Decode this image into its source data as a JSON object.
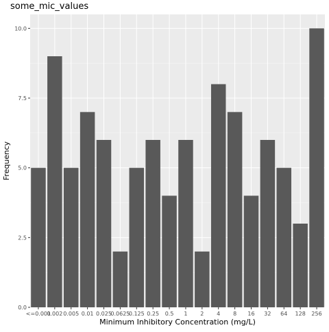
{
  "chart_data": {
    "type": "bar",
    "title": "some_mic_values",
    "xlabel": "Minimum Inhibitory Concentration (mg/L)",
    "ylabel": "Frequency",
    "categories": [
      "<=0.001",
      "0.002",
      "0.005",
      "0.01",
      "0.025",
      "0.0625",
      "0.125",
      "0.25",
      "0.5",
      "1",
      "2",
      "4",
      "8",
      "16",
      "32",
      "64",
      "128",
      "256"
    ],
    "values": [
      5,
      9,
      5,
      7,
      6,
      2,
      5,
      6,
      4,
      6,
      2,
      8,
      7,
      4,
      6,
      5,
      3,
      10
    ],
    "yticks": [
      "0.0",
      "2.5",
      "5.0",
      "7.5",
      "10.0"
    ],
    "ylim": [
      0,
      10.5
    ],
    "grid": true,
    "colors": {
      "panel_bg": "#ebebeb",
      "grid_major": "#ffffff",
      "bar_fill": "#595959",
      "text": "#4d4d4d"
    }
  }
}
